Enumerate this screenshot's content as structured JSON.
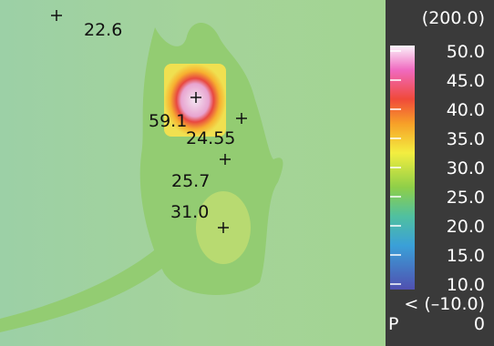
{
  "readings": [
    "22.6",
    "59.1",
    "24.55",
    "25.7",
    "31.0"
  ],
  "scale": {
    "max_label": "(200.0)",
    "ticks": [
      "50.0",
      "45.0",
      "40.0",
      "35.0",
      "30.0",
      "25.0",
      "20.0",
      "15.0",
      "10.0"
    ],
    "min_label": "< (–10.0)",
    "mode": "P",
    "mode_value": "0"
  }
}
